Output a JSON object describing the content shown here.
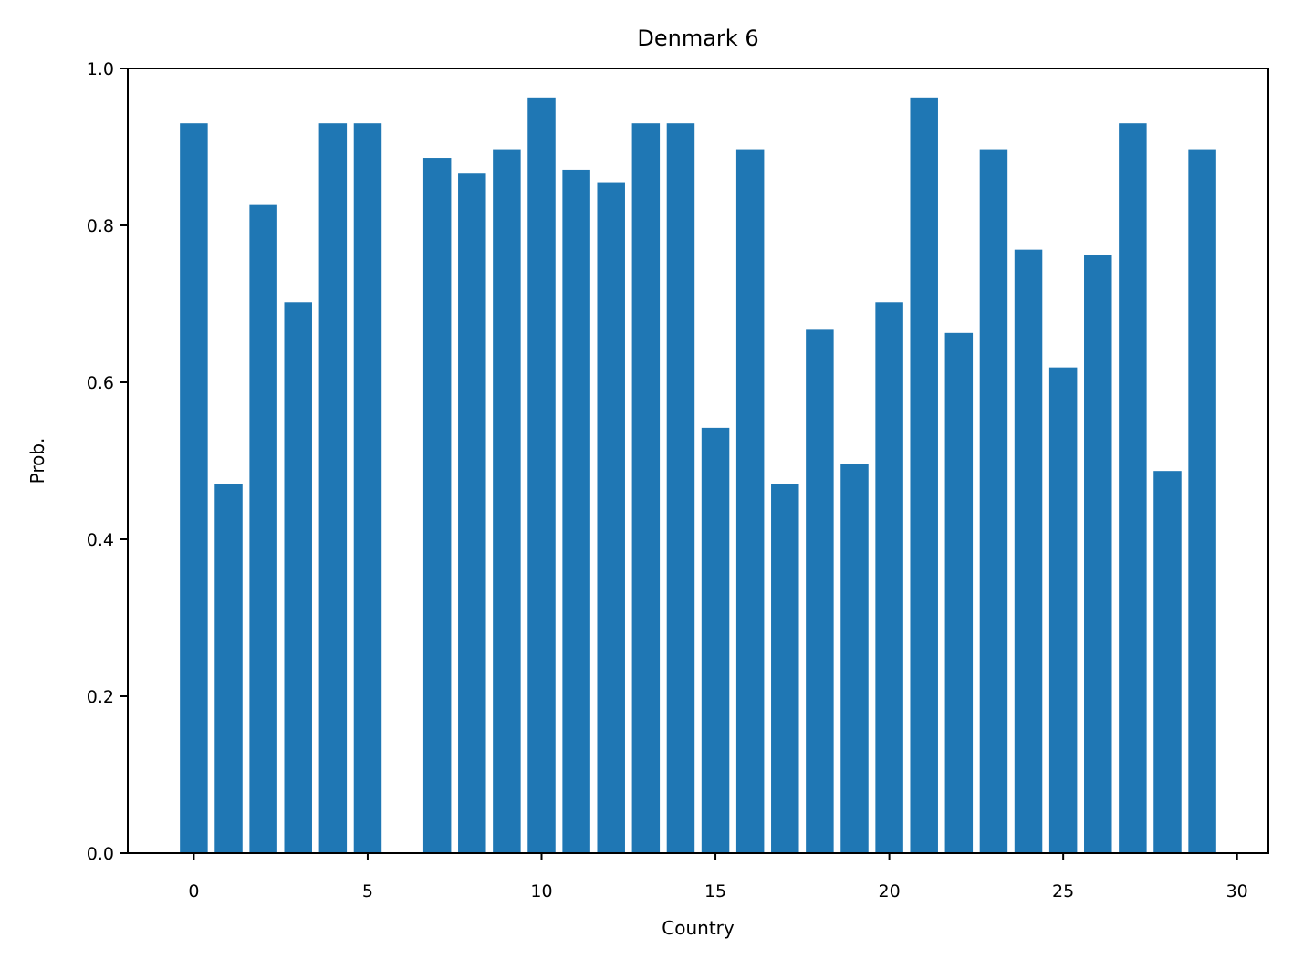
{
  "chart_data": {
    "type": "bar",
    "title": "Denmark 6",
    "xlabel": "Country",
    "ylabel": "Prob.",
    "xlim": [
      -1.9,
      30.9
    ],
    "ylim": [
      0.0,
      1.0
    ],
    "xticks": [
      "0",
      "5",
      "10",
      "15",
      "20",
      "25",
      "30"
    ],
    "yticks": [
      "0.0",
      "0.2",
      "0.4",
      "0.6",
      "0.8",
      "1.0"
    ],
    "grid": false,
    "bar_color": "#1f77b4",
    "x": [
      0,
      1,
      2,
      3,
      4,
      5,
      6,
      7,
      8,
      9,
      10,
      11,
      12,
      13,
      14,
      15,
      16,
      17,
      18,
      19,
      20,
      21,
      22,
      23,
      24,
      25,
      26,
      27,
      28,
      29
    ],
    "values": [
      0.93,
      0.47,
      0.826,
      0.702,
      0.93,
      0.93,
      0.0,
      0.886,
      0.866,
      0.897,
      0.963,
      0.871,
      0.854,
      0.93,
      0.93,
      0.542,
      0.897,
      0.47,
      0.667,
      0.496,
      0.702,
      0.963,
      0.663,
      0.897,
      0.769,
      0.619,
      0.762,
      0.93,
      0.487,
      0.897
    ]
  }
}
